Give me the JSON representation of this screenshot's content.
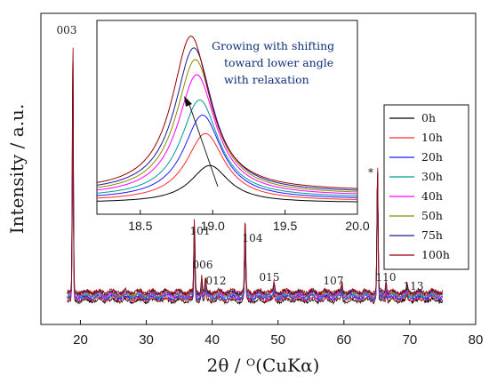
{
  "chart_data": {
    "type": "line",
    "xlabel": "2θ / ᴼ(CuKα)",
    "ylabel": "Intensity / a.u.",
    "xlim": [
      14,
      80
    ],
    "x_ticks": [
      20,
      30,
      40,
      50,
      60,
      70,
      80
    ],
    "y_ticks_shown": false,
    "legend_position": "right",
    "series": [
      {
        "name": "0h",
        "color": "#000000",
        "offset": 0.0
      },
      {
        "name": "10h",
        "color": "#ff2a2a",
        "offset": 0.012
      },
      {
        "name": "20h",
        "color": "#1a1aff",
        "offset": 0.024
      },
      {
        "name": "30h",
        "color": "#009999",
        "offset": 0.034
      },
      {
        "name": "40h",
        "color": "#ff00ff",
        "offset": 0.044
      },
      {
        "name": "50h",
        "color": "#8a8a00",
        "offset": 0.052
      },
      {
        "name": "75h",
        "color": "#1a1a99",
        "offset": 0.06
      },
      {
        "name": "100h",
        "color": "#990000",
        "offset": 0.068
      }
    ],
    "peaks": [
      {
        "label": "003",
        "x": 18.85,
        "height": 1.0
      },
      {
        "label": "101",
        "x": 37.3,
        "height": 0.28
      },
      {
        "label": "006",
        "x": 38.4,
        "height": 0.06
      },
      {
        "label": "012",
        "x": 39.0,
        "height": 0.05
      },
      {
        "label": "104",
        "x": 45.0,
        "height": 0.28
      },
      {
        "label": "015",
        "x": 49.4,
        "height": 0.03
      },
      {
        "label": "107",
        "x": 59.7,
        "height": 0.04
      },
      {
        "label": "*",
        "x": 65.1,
        "height": 0.48
      },
      {
        "label": "110",
        "x": 66.4,
        "height": 0.05
      },
      {
        "label": "113",
        "x": 69.6,
        "height": 0.03
      }
    ],
    "inset": {
      "xlim": [
        18.2,
        20.0
      ],
      "x_ticks": [
        "18.5",
        "19.0",
        "19.5",
        "20.0"
      ],
      "annotation": "Growing with shifting toward lower angle with relaxation",
      "peaks": [
        {
          "series": "0h",
          "center": 18.98,
          "height": 0.22
        },
        {
          "series": "10h",
          "center": 18.95,
          "height": 0.4
        },
        {
          "series": "20h",
          "center": 18.93,
          "height": 0.5
        },
        {
          "series": "30h",
          "center": 18.91,
          "height": 0.58
        },
        {
          "series": "40h",
          "center": 18.89,
          "height": 0.72
        },
        {
          "series": "50h",
          "center": 18.88,
          "height": 0.8
        },
        {
          "series": "75h",
          "center": 18.87,
          "height": 0.86
        },
        {
          "series": "100h",
          "center": 18.85,
          "height": 0.92
        }
      ]
    }
  },
  "annotation_lines": [
    "Growing with shifting",
    "toward lower angle",
    "with relaxation"
  ]
}
